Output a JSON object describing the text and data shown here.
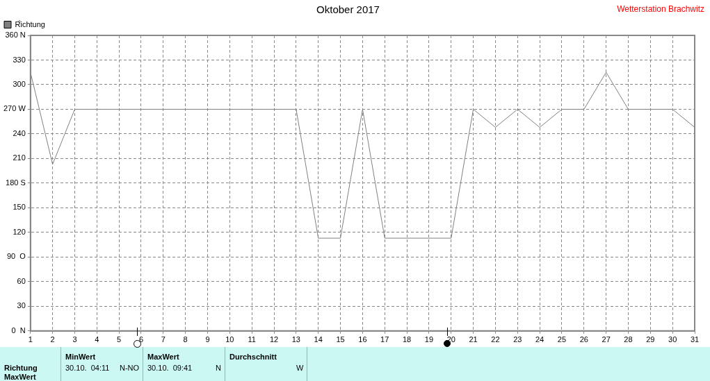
{
  "chart_data": {
    "type": "line",
    "title": "Oktober 2017",
    "ylabel": "°",
    "x": [
      1,
      2,
      3,
      4,
      5,
      6,
      7,
      8,
      9,
      10,
      11,
      12,
      13,
      14,
      15,
      16,
      17,
      18,
      19,
      20,
      21,
      22,
      23,
      24,
      25,
      26,
      27,
      28,
      29,
      30,
      31
    ],
    "series": [
      {
        "name": "Richtung",
        "color": "#808080",
        "values": [
          315,
          203,
          270,
          270,
          270,
          270,
          270,
          270,
          270,
          270,
          270,
          270,
          270,
          113,
          113,
          270,
          113,
          113,
          113,
          113,
          270,
          248,
          270,
          248,
          270,
          270,
          315,
          270,
          270,
          270,
          248
        ]
      }
    ],
    "xlim": [
      1,
      31
    ],
    "xticks": [
      1,
      2,
      3,
      4,
      5,
      6,
      7,
      8,
      9,
      10,
      11,
      12,
      13,
      14,
      15,
      16,
      17,
      18,
      19,
      20,
      21,
      22,
      23,
      24,
      25,
      26,
      27,
      28,
      29,
      30,
      31
    ],
    "ylim": [
      0,
      360
    ],
    "yticks": [
      {
        "value": 0,
        "label": "0  N"
      },
      30,
      60,
      {
        "value": 90,
        "label": "90  O"
      },
      120,
      150,
      {
        "value": 180,
        "label": "180 S"
      },
      210,
      240,
      {
        "value": 270,
        "label": "270 W"
      },
      300,
      330,
      {
        "value": 360,
        "label": "360 N"
      }
    ],
    "grid": true,
    "legend": "top left",
    "marker": "none",
    "line_style": "solid",
    "annotations": [
      "Wetterstation Brachwitz",
      "Richtung",
      "MaxWert",
      "MinWert",
      "30.10.  04:11",
      "N-NO",
      "MaxWert",
      "30.10.  09:41",
      "N",
      "Durchschnitt",
      "W"
    ]
  }
}
